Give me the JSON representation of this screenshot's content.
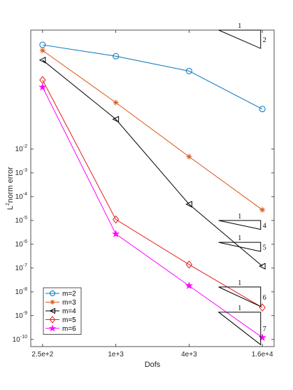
{
  "chart_data": {
    "type": "line",
    "xlabel": "Dofs",
    "ylabel_base": "L",
    "ylabel_sup": "2",
    "ylabel_rest": "norm error",
    "x_scale": "log",
    "y_scale": "log",
    "x": [
      250,
      1000,
      4000,
      16000
    ],
    "x_tick_labels": [
      "2.5e+2",
      "1e+3",
      "4e+3",
      "1.6e+4"
    ],
    "xlim": [
      200,
      20000
    ],
    "ylim": [
      5e-11,
      1000.0
    ],
    "y_tick_exponents": [
      -10,
      -9,
      -8,
      -7,
      -6,
      -5,
      -4,
      -3,
      -2
    ],
    "y_tick_base": "10",
    "legend_position": "bottom-left",
    "series": [
      {
        "name": "m=2",
        "marker": "circle",
        "color": "#0072BD",
        "values": [
          240,
          80,
          19,
          0.48
        ]
      },
      {
        "name": "m=3",
        "marker": "asterisk",
        "color": "#D95319",
        "values": [
          140,
          0.9,
          0.0048,
          2.8e-05
        ]
      },
      {
        "name": "m=4",
        "marker": "triangle-left",
        "color": "#000000",
        "values": [
          55,
          0.18,
          4.8e-05,
          1.2e-07
        ]
      },
      {
        "name": "m=5",
        "marker": "diamond",
        "color": "#E41A1C",
        "values": [
          8,
          1.1e-05,
          1.4e-07,
          2.2e-09
        ]
      },
      {
        "name": "m=6",
        "marker": "pentagram",
        "color": "#FF00FF",
        "values": [
          4,
          2.7e-06,
          1.8e-08,
          1.2e-10
        ]
      }
    ],
    "slope_triangles": [
      {
        "label_top": "1",
        "label_side": "2",
        "x_left": 7000,
        "x_right": 15500,
        "y_top": 170,
        "y_bottom": 1000
      },
      {
        "label_top": "1",
        "label_side": "4",
        "x_left": 7000,
        "x_right": 15500,
        "y_top": 1e-05,
        "y_bottom": 4.2e-06
      },
      {
        "label_top": "1",
        "label_side": "5",
        "x_left": 7000,
        "x_right": 15500,
        "y_top": 5e-07,
        "y_bottom": 1.2e-06
      },
      {
        "label_top": "1",
        "label_side": "6",
        "x_left": 7000,
        "x_right": 15500,
        "y_top": 1.6e-08,
        "y_bottom": 2.4e-09
      },
      {
        "label_top": "1",
        "label_side": "7",
        "x_left": 7000,
        "x_right": 15500,
        "y_top": 1.4e-09,
        "y_bottom": 6e-11
      }
    ]
  }
}
